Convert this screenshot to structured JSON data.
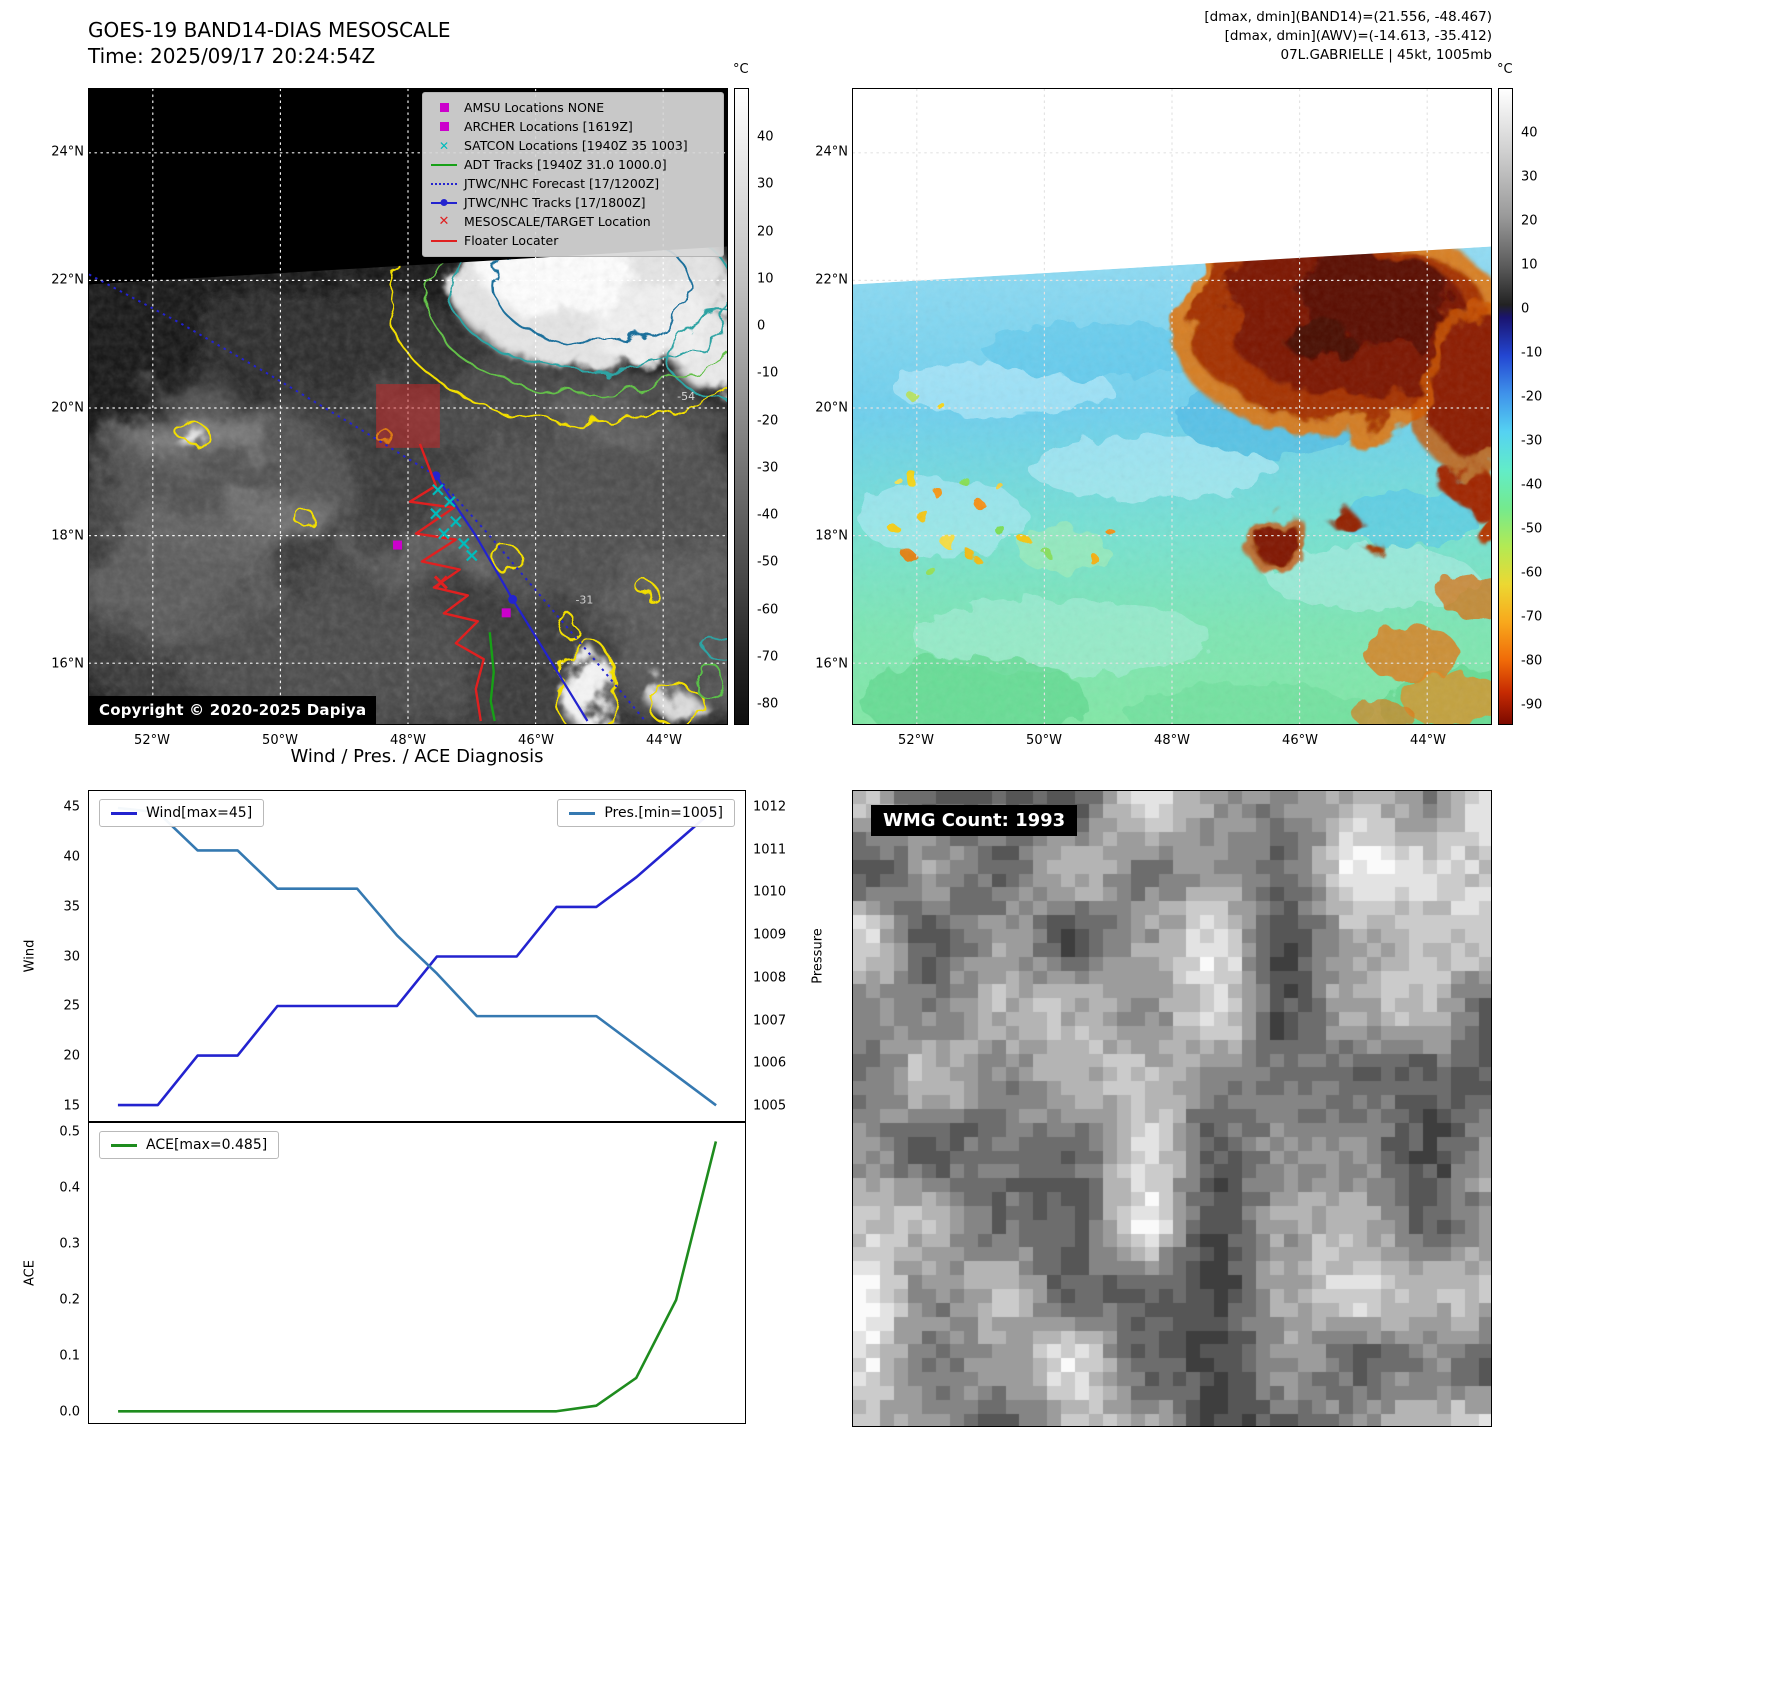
{
  "colors": {
    "jtwc_blue": "#2323cf",
    "floater_red": "#e02020",
    "adt_green": "#17a017",
    "satcon_cyan": "#00bcbc",
    "amsu_magenta": "#cc00cc",
    "wind_line": "#2323cf",
    "pressure_line": "#3579b1",
    "ace_line": "#1e8c1e"
  },
  "band14": {
    "title": "GOES-19 BAND14-DIAS MESOSCALE",
    "subtitle": "Time: 2025/09/17 20:24:54Z",
    "copyright": "Copyright © 2020-2025 Dapiya",
    "lat_ticks": [
      "24°N",
      "22°N",
      "20°N",
      "18°N",
      "16°N"
    ],
    "lon_ticks": [
      "52°W",
      "50°W",
      "48°W",
      "46°W",
      "44°W"
    ],
    "colorbar_unit": "°C",
    "colorbar_ticks": [
      "40",
      "30",
      "20",
      "10",
      "0",
      "-10",
      "-20",
      "-30",
      "-40",
      "-50",
      "-60",
      "-70",
      "-80"
    ],
    "contour_label_cold": "-54",
    "contour_label_warm": "-31",
    "legend": [
      {
        "label": "AMSU Locations NONE",
        "marker": "magenta-square"
      },
      {
        "label": "ARCHER Locations [1619Z]",
        "marker": "magenta-square"
      },
      {
        "label": "SATCON Locations [1940Z 35 1003]",
        "marker": "cyan-x"
      },
      {
        "label": "ADT Tracks [1940Z 31.0 1000.0]",
        "marker": "green-line"
      },
      {
        "label": "JTWC/NHC Forecast [17/1200Z]",
        "marker": "blue-dotted-line"
      },
      {
        "label": "JTWC/NHC Tracks [17/1800Z]",
        "marker": "blue-line-dot"
      },
      {
        "label": "MESOSCALE/TARGET Location",
        "marker": "red-x"
      },
      {
        "label": "Floater Locater",
        "marker": "red-line"
      }
    ]
  },
  "awv": {
    "header_line1": "[dmax, dmin](BAND14)=(21.556, -48.467)",
    "header_line2": "[dmax, dmin](AWV)=(-14.613, -35.412)",
    "header_line3": "07L.GABRIELLE | 45kt, 1005mb",
    "lat_ticks": [
      "24°N",
      "22°N",
      "20°N",
      "18°N",
      "16°N"
    ],
    "lon_ticks": [
      "52°W",
      "50°W",
      "48°W",
      "46°W",
      "44°W"
    ],
    "colorbar_unit": "°C",
    "colorbar_ticks": [
      "40",
      "30",
      "20",
      "10",
      "0",
      "-10",
      "-20",
      "-30",
      "-40",
      "-50",
      "-60",
      "-70",
      "-80",
      "-90"
    ]
  },
  "diagnosis": {
    "title": "Wind / Pres. / ACE Diagnosis",
    "wind_ylabel": "Wind",
    "pressure_ylabel": "Pressure",
    "ace_ylabel": "ACE",
    "wind_legend": "Wind[max=45]",
    "pres_legend": "Pres.[min=1005]",
    "ace_legend": "ACE[max=0.485]",
    "wind_ticks": [
      "45",
      "40",
      "35",
      "30",
      "25",
      "20",
      "15"
    ],
    "pressure_ticks": [
      "1012",
      "1011",
      "1010",
      "1009",
      "1008",
      "1007",
      "1006",
      "1005"
    ],
    "ace_ticks": [
      "0.5",
      "0.4",
      "0.3",
      "0.2",
      "0.1",
      "0.0"
    ]
  },
  "wmg": {
    "label": "WMG Count: 1993"
  },
  "chart_data": [
    {
      "type": "line",
      "title": "Wind / Pres. / ACE Diagnosis (upper panel)",
      "x": [
        0,
        1,
        2,
        3,
        4,
        5,
        6,
        7,
        8,
        9,
        10,
        11,
        12,
        13,
        14,
        15
      ],
      "xlim": [
        -0.7,
        15.7
      ],
      "series": [
        {
          "name": "Wind[max=45]",
          "yaxis": "left",
          "color": "#2323cf",
          "values": [
            15,
            15,
            20,
            20,
            25,
            25,
            25,
            25,
            30,
            30,
            30,
            35,
            35,
            38,
            41.5,
            45
          ]
        },
        {
          "name": "Pres.[min=1005]",
          "yaxis": "right",
          "color": "#3579b1",
          "values": [
            1012,
            1011.9,
            1011,
            1011,
            1010.1,
            1010.1,
            1010.1,
            1009,
            1008.1,
            1007.1,
            1007.1,
            1007.1,
            1007.1,
            1006.4,
            1005.7,
            1005
          ]
        }
      ],
      "ylabel": "Wind",
      "y2label": "Pressure",
      "ylim": [
        13.4,
        46.7
      ],
      "y2lim": [
        1004.63,
        1012.4
      ],
      "yticks": [
        15,
        20,
        25,
        30,
        35,
        40,
        45
      ],
      "y2ticks": [
        1005,
        1006,
        1007,
        1008,
        1009,
        1010,
        1011,
        1012
      ],
      "wind_max": 45,
      "pres_min": 1005,
      "legend_position": "upper-left and upper-right",
      "grid": false
    },
    {
      "type": "line",
      "title": "ACE (lower panel)",
      "x": [
        0,
        1,
        2,
        3,
        4,
        5,
        6,
        7,
        8,
        9,
        10,
        11,
        12,
        13,
        14,
        15
      ],
      "xlim": [
        -0.7,
        15.7
      ],
      "series": [
        {
          "name": "ACE[max=0.485]",
          "yaxis": "left",
          "color": "#1e8c1e",
          "values": [
            0,
            0,
            0,
            0,
            0,
            0,
            0,
            0,
            0,
            0,
            0,
            0,
            0.01,
            0.06,
            0.2,
            0.485
          ]
        }
      ],
      "ylabel": "ACE",
      "ylim": [
        -0.021,
        0.518
      ],
      "yticks": [
        0.0,
        0.1,
        0.2,
        0.3,
        0.4,
        0.5
      ],
      "ace_max": 0.485,
      "legend_position": "upper-left",
      "grid": false
    }
  ]
}
